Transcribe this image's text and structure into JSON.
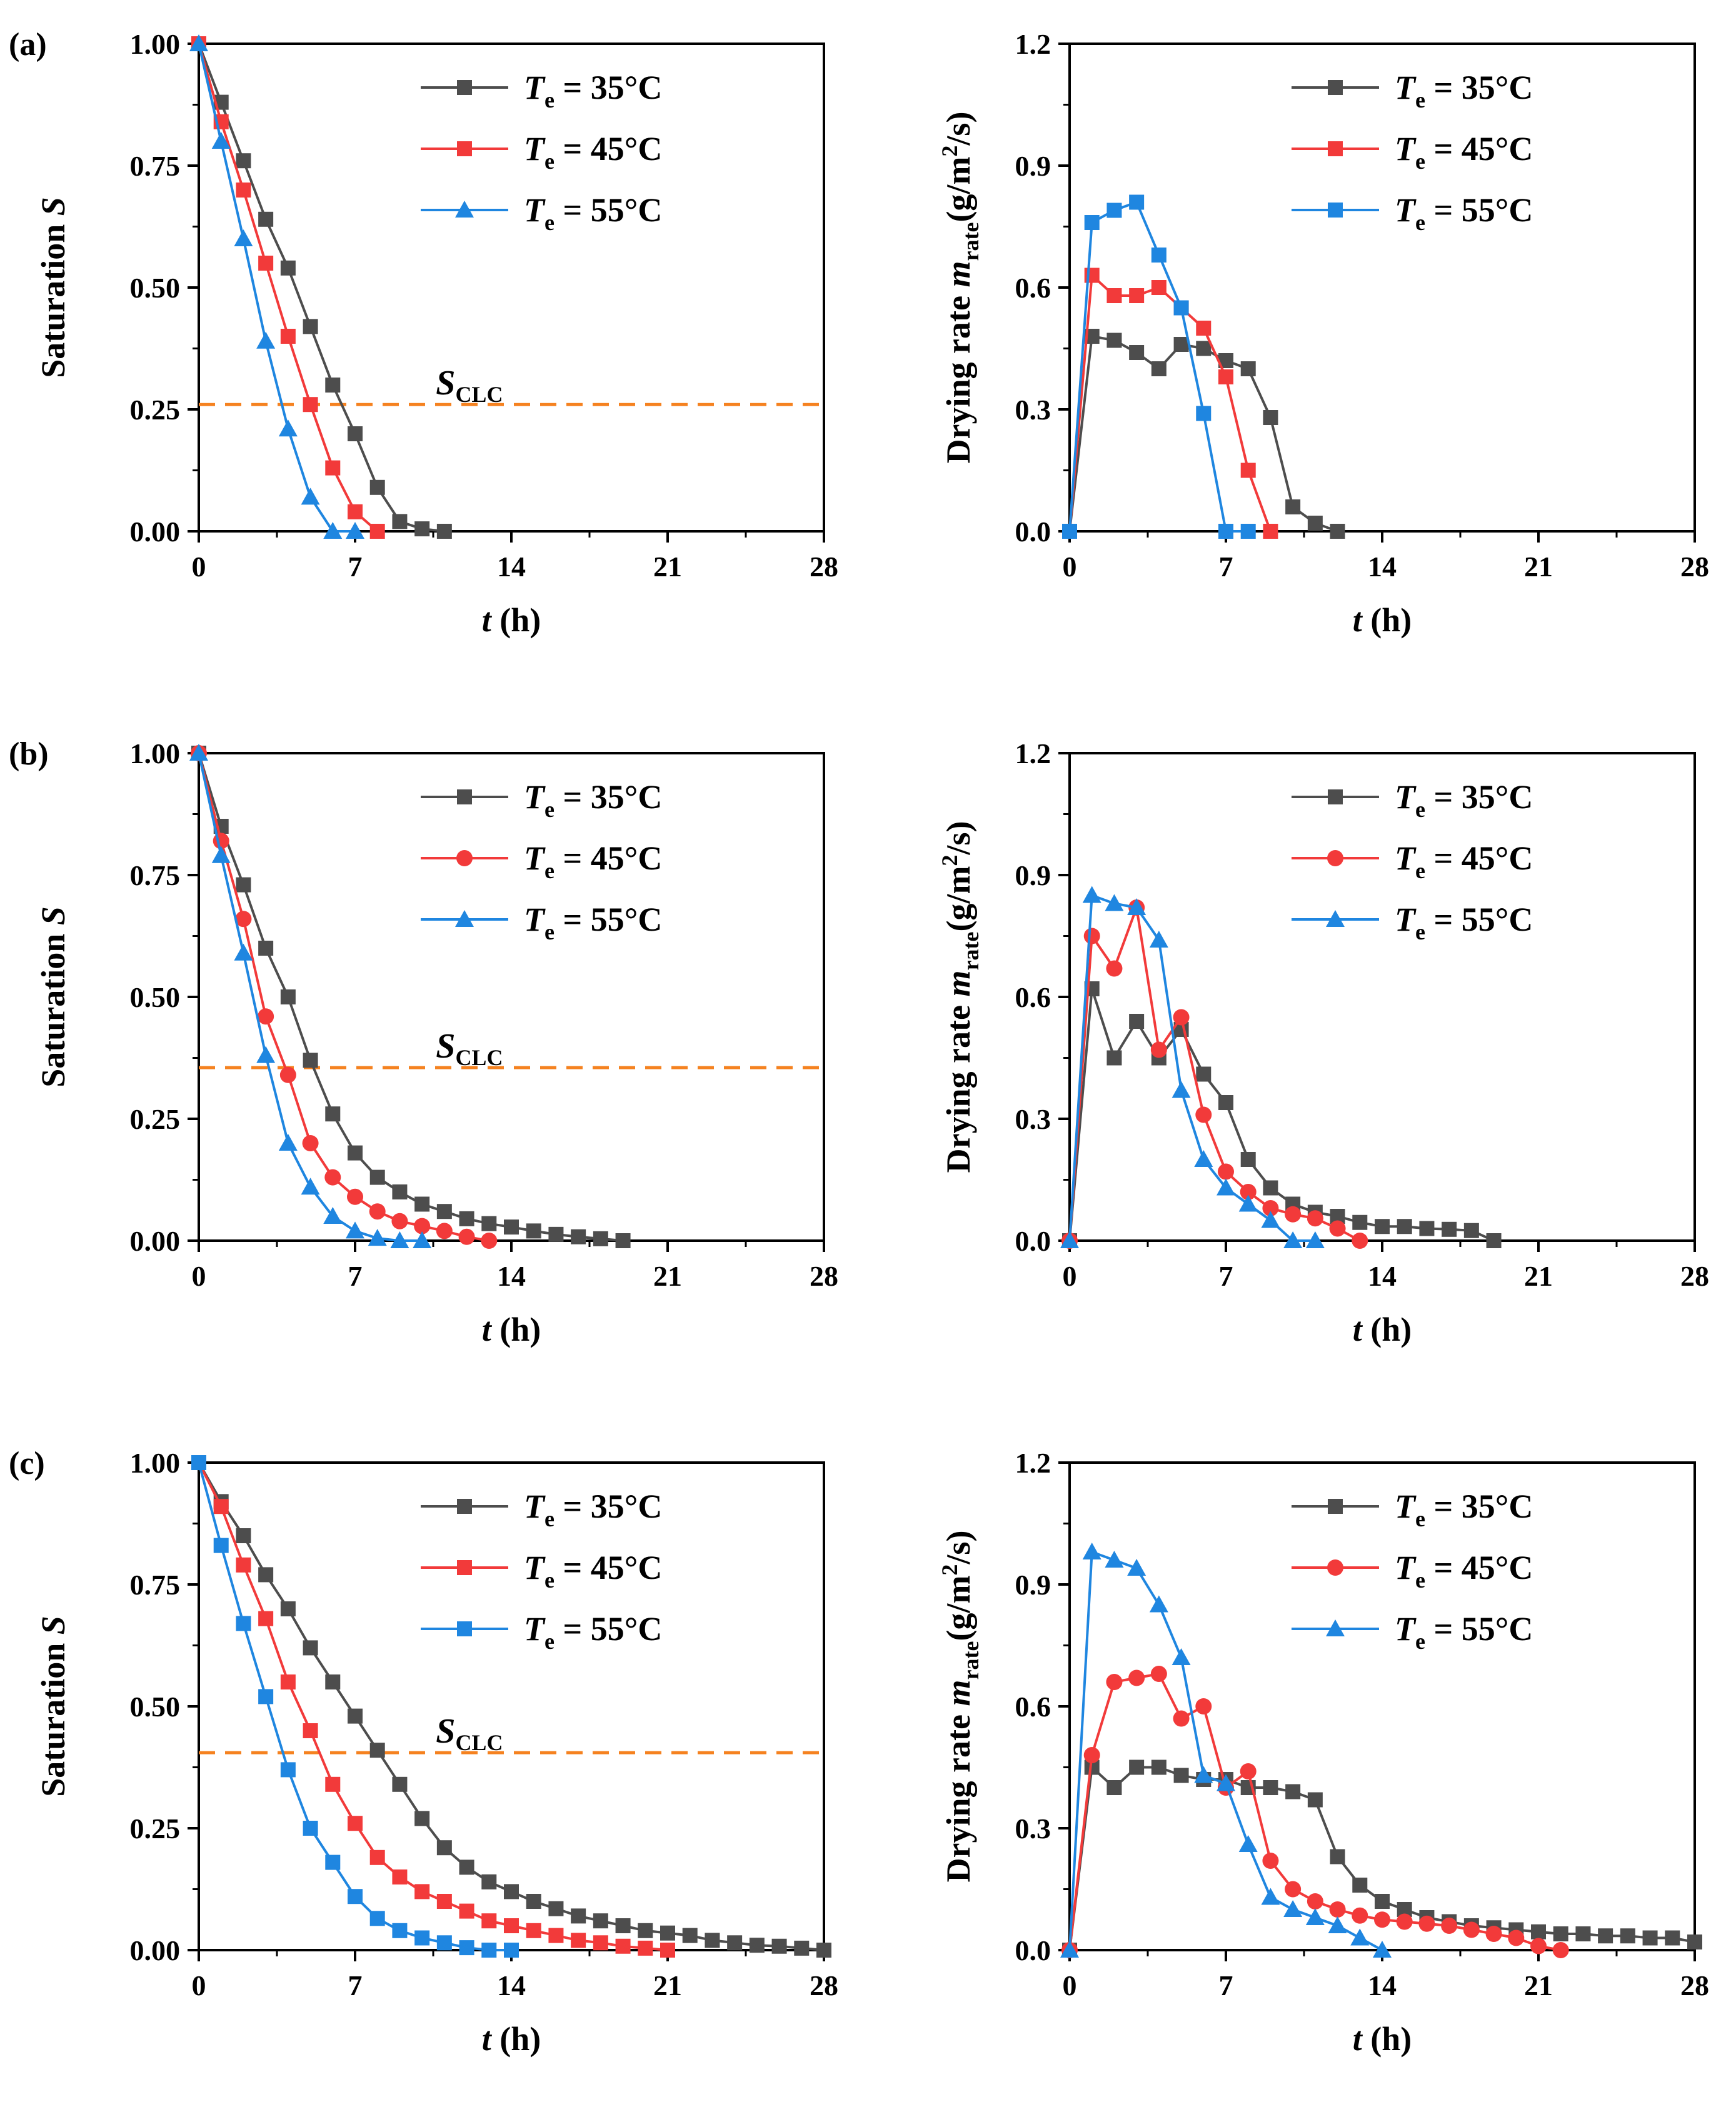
{
  "figure": {
    "units": {
      "saturation": "",
      "rate": ""
    },
    "axis_text": {
      "t_var": "t",
      "t_unit": " (h)",
      "sat_word": "Saturation ",
      "sat_var": "S",
      "rate_pre": "Drying rate ",
      "rate_var": "m",
      "rate_sub": "rate",
      "rate_unit_a": "(g/m",
      "rate_unit_exp": "2",
      "rate_unit_b": "/s)",
      "sclc_var": "S",
      "sclc_sub": "CLC"
    },
    "legend_text": {
      "var": "T",
      "sub": "e",
      "eq": " = "
    }
  },
  "colors": {
    "s35": "#4d4d4d",
    "s45": "#f23a3a",
    "s55": "#1f86e0",
    "sclc": "#f58220"
  },
  "chart_data": [
    {
      "panel": "(a)",
      "type": "line",
      "quantity": "saturation",
      "title": "",
      "xlabel": "t (h)",
      "ylabel": "Saturation S",
      "xlim": [
        0,
        28
      ],
      "ylim": [
        0,
        1.0
      ],
      "xticks": [
        "0",
        "7",
        "14",
        "21",
        "28"
      ],
      "yticks": [
        "0.00",
        "0.25",
        "0.50",
        "0.75",
        "1.00"
      ],
      "sclc": 0.26,
      "sclc_label_t": 9.5,
      "series": [
        {
          "name": "Te = 35°C",
          "label": "35°C",
          "color": "#4d4d4d",
          "marker": "square",
          "x": [
            0,
            1,
            2,
            3,
            4,
            5,
            6,
            7,
            8,
            9,
            10,
            11
          ],
          "y": [
            1.0,
            0.88,
            0.76,
            0.64,
            0.54,
            0.42,
            0.3,
            0.2,
            0.09,
            0.02,
            0.005,
            0.0
          ]
        },
        {
          "name": "Te = 45°C",
          "label": "45°C",
          "color": "#f23a3a",
          "marker": "square",
          "x": [
            0,
            1,
            2,
            3,
            4,
            5,
            6,
            7,
            8
          ],
          "y": [
            1.0,
            0.84,
            0.7,
            0.55,
            0.4,
            0.26,
            0.13,
            0.04,
            0.0
          ]
        },
        {
          "name": "Te = 55°C",
          "label": "55°C",
          "color": "#1f86e0",
          "marker": "triangle",
          "x": [
            0,
            1,
            2,
            3,
            4,
            5,
            6,
            7
          ],
          "y": [
            1.0,
            0.8,
            0.6,
            0.39,
            0.21,
            0.07,
            0.0,
            0.0
          ]
        }
      ]
    },
    {
      "panel": "",
      "type": "line",
      "quantity": "rate",
      "title": "",
      "xlabel": "t (h)",
      "ylabel": "Drying rate m_rate(g/m2/s)",
      "xlim": [
        0,
        28
      ],
      "ylim": [
        0,
        1.2
      ],
      "xticks": [
        "0",
        "7",
        "14",
        "21",
        "28"
      ],
      "yticks": [
        "0.0",
        "0.3",
        "0.6",
        "0.9",
        "1.2"
      ],
      "series": [
        {
          "name": "Te = 35°C",
          "label": "35°C",
          "color": "#4d4d4d",
          "marker": "square",
          "x": [
            0,
            1,
            2,
            3,
            4,
            5,
            6,
            7,
            8,
            9,
            10,
            11,
            12
          ],
          "y": [
            0,
            0.48,
            0.47,
            0.44,
            0.4,
            0.46,
            0.45,
            0.42,
            0.4,
            0.28,
            0.06,
            0.02,
            0.0
          ]
        },
        {
          "name": "Te = 45°C",
          "label": "45°C",
          "color": "#f23a3a",
          "marker": "square",
          "x": [
            0,
            1,
            2,
            3,
            4,
            5,
            6,
            7,
            8,
            9
          ],
          "y": [
            0,
            0.63,
            0.58,
            0.58,
            0.6,
            0.55,
            0.5,
            0.38,
            0.15,
            0.0
          ]
        },
        {
          "name": "Te = 55°C",
          "label": "55°C",
          "color": "#1f86e0",
          "marker": "square",
          "x": [
            0,
            1,
            2,
            3,
            4,
            5,
            6,
            7,
            8
          ],
          "y": [
            0,
            0.76,
            0.79,
            0.81,
            0.68,
            0.55,
            0.29,
            0.0,
            0.0
          ]
        }
      ]
    },
    {
      "panel": "(b)",
      "type": "line",
      "quantity": "saturation",
      "title": "",
      "xlabel": "t (h)",
      "ylabel": "Saturation S",
      "xlim": [
        0,
        28
      ],
      "ylim": [
        0,
        1.0
      ],
      "xticks": [
        "0",
        "7",
        "14",
        "21",
        "28"
      ],
      "yticks": [
        "0.00",
        "0.25",
        "0.50",
        "0.75",
        "1.00"
      ],
      "sclc": 0.355,
      "sclc_label_t": 9.5,
      "series": [
        {
          "name": "Te = 35°C",
          "label": "35°C",
          "color": "#4d4d4d",
          "marker": "square",
          "x": [
            0,
            1,
            2,
            3,
            4,
            5,
            6,
            7,
            8,
            9,
            10,
            11,
            12,
            13,
            14,
            15,
            16,
            17,
            18,
            19
          ],
          "y": [
            1.0,
            0.85,
            0.73,
            0.6,
            0.5,
            0.37,
            0.26,
            0.18,
            0.13,
            0.1,
            0.075,
            0.06,
            0.045,
            0.035,
            0.028,
            0.02,
            0.013,
            0.008,
            0.004,
            0.0
          ]
        },
        {
          "name": "Te = 45°C",
          "label": "45°C",
          "color": "#f23a3a",
          "marker": "circle",
          "x": [
            0,
            1,
            2,
            3,
            4,
            5,
            6,
            7,
            8,
            9,
            10,
            11,
            12,
            13
          ],
          "y": [
            1.0,
            0.82,
            0.66,
            0.46,
            0.34,
            0.2,
            0.13,
            0.09,
            0.06,
            0.04,
            0.03,
            0.02,
            0.008,
            0.0
          ]
        },
        {
          "name": "Te = 55°C",
          "label": "55°C",
          "color": "#1f86e0",
          "marker": "triangle",
          "x": [
            0,
            1,
            2,
            3,
            4,
            5,
            6,
            7,
            8,
            9,
            10
          ],
          "y": [
            1.0,
            0.79,
            0.59,
            0.38,
            0.2,
            0.11,
            0.05,
            0.02,
            0.005,
            0.0,
            0.0
          ]
        }
      ]
    },
    {
      "panel": "",
      "type": "line",
      "quantity": "rate",
      "title": "",
      "xlabel": "t (h)",
      "ylabel": "Drying rate m_rate(g/m2/s)",
      "xlim": [
        0,
        28
      ],
      "ylim": [
        0,
        1.2
      ],
      "xticks": [
        "0",
        "7",
        "14",
        "21",
        "28"
      ],
      "yticks": [
        "0.0",
        "0.3",
        "0.6",
        "0.9",
        "1.2"
      ],
      "series": [
        {
          "name": "Te = 35°C",
          "label": "35°C",
          "color": "#4d4d4d",
          "marker": "square",
          "x": [
            0,
            1,
            2,
            3,
            4,
            5,
            6,
            7,
            8,
            9,
            10,
            11,
            12,
            13,
            14,
            15,
            16,
            17,
            18,
            19
          ],
          "y": [
            0,
            0.62,
            0.45,
            0.54,
            0.45,
            0.52,
            0.41,
            0.34,
            0.2,
            0.13,
            0.09,
            0.07,
            0.06,
            0.045,
            0.035,
            0.035,
            0.03,
            0.028,
            0.025,
            0.0
          ]
        },
        {
          "name": "Te = 45°C",
          "label": "45°C",
          "color": "#f23a3a",
          "marker": "circle",
          "x": [
            0,
            1,
            2,
            3,
            4,
            5,
            6,
            7,
            8,
            9,
            10,
            11,
            12,
            13
          ],
          "y": [
            0,
            0.75,
            0.67,
            0.82,
            0.47,
            0.55,
            0.31,
            0.17,
            0.12,
            0.08,
            0.065,
            0.055,
            0.03,
            0.0
          ]
        },
        {
          "name": "Te = 55°C",
          "label": "55°C",
          "color": "#1f86e0",
          "marker": "triangle",
          "x": [
            0,
            1,
            2,
            3,
            4,
            5,
            6,
            7,
            8,
            9,
            10,
            11
          ],
          "y": [
            0,
            0.85,
            0.83,
            0.82,
            0.74,
            0.37,
            0.2,
            0.13,
            0.09,
            0.05,
            0.0,
            0.0
          ]
        }
      ]
    },
    {
      "panel": "(c)",
      "type": "line",
      "quantity": "saturation",
      "title": "",
      "xlabel": "t (h)",
      "ylabel": "Saturation S",
      "xlim": [
        0,
        28
      ],
      "ylim": [
        0,
        1.0
      ],
      "xticks": [
        "0",
        "7",
        "14",
        "21",
        "28"
      ],
      "yticks": [
        "0.00",
        "0.25",
        "0.50",
        "0.75",
        "1.00"
      ],
      "sclc": 0.405,
      "sclc_label_t": 9.5,
      "series": [
        {
          "name": "Te = 35°C",
          "label": "35°C",
          "color": "#4d4d4d",
          "marker": "square",
          "x": [
            0,
            1,
            2,
            3,
            4,
            5,
            6,
            7,
            8,
            9,
            10,
            11,
            12,
            13,
            14,
            15,
            16,
            17,
            18,
            19,
            20,
            21,
            22,
            23,
            24,
            25,
            26,
            27,
            28
          ],
          "y": [
            1.0,
            0.92,
            0.85,
            0.77,
            0.7,
            0.62,
            0.55,
            0.48,
            0.41,
            0.34,
            0.27,
            0.21,
            0.17,
            0.14,
            0.12,
            0.1,
            0.085,
            0.07,
            0.06,
            0.05,
            0.04,
            0.035,
            0.03,
            0.02,
            0.015,
            0.01,
            0.008,
            0.004,
            0.0
          ]
        },
        {
          "name": "Te = 45°C",
          "label": "45°C",
          "color": "#f23a3a",
          "marker": "square",
          "x": [
            0,
            1,
            2,
            3,
            4,
            5,
            6,
            7,
            8,
            9,
            10,
            11,
            12,
            13,
            14,
            15,
            16,
            17,
            18,
            19,
            20,
            21
          ],
          "y": [
            1.0,
            0.91,
            0.79,
            0.68,
            0.55,
            0.45,
            0.34,
            0.26,
            0.19,
            0.15,
            0.12,
            0.1,
            0.08,
            0.06,
            0.05,
            0.04,
            0.03,
            0.02,
            0.015,
            0.008,
            0.004,
            0.0
          ]
        },
        {
          "name": "Te = 55°C",
          "label": "55°C",
          "color": "#1f86e0",
          "marker": "square",
          "x": [
            0,
            1,
            2,
            3,
            4,
            5,
            6,
            7,
            8,
            9,
            10,
            11,
            12,
            13,
            14
          ],
          "y": [
            1.0,
            0.83,
            0.67,
            0.52,
            0.37,
            0.25,
            0.18,
            0.11,
            0.065,
            0.04,
            0.025,
            0.015,
            0.005,
            0.0,
            0.0
          ]
        }
      ]
    },
    {
      "panel": "",
      "type": "line",
      "quantity": "rate",
      "title": "",
      "xlabel": "t (h)",
      "ylabel": "Drying rate m_rate(g/m2/s)",
      "xlim": [
        0,
        28
      ],
      "ylim": [
        0,
        1.2
      ],
      "xticks": [
        "0",
        "7",
        "14",
        "21",
        "28"
      ],
      "yticks": [
        "0.0",
        "0.3",
        "0.6",
        "0.9",
        "1.2"
      ],
      "series": [
        {
          "name": "Te = 35°C",
          "label": "35°C",
          "color": "#4d4d4d",
          "marker": "square",
          "x": [
            0,
            1,
            2,
            3,
            4,
            5,
            6,
            7,
            8,
            9,
            10,
            11,
            12,
            13,
            14,
            15,
            16,
            17,
            18,
            19,
            20,
            21,
            22,
            23,
            24,
            25,
            26,
            27,
            28
          ],
          "y": [
            0,
            0.45,
            0.4,
            0.45,
            0.45,
            0.43,
            0.42,
            0.42,
            0.4,
            0.4,
            0.39,
            0.37,
            0.23,
            0.16,
            0.12,
            0.1,
            0.08,
            0.07,
            0.06,
            0.055,
            0.05,
            0.045,
            0.04,
            0.04,
            0.035,
            0.035,
            0.03,
            0.03,
            0.02
          ]
        },
        {
          "name": "Te = 45°C",
          "label": "45°C",
          "color": "#f23a3a",
          "marker": "circle",
          "x": [
            0,
            1,
            2,
            3,
            4,
            5,
            6,
            7,
            8,
            9,
            10,
            11,
            12,
            13,
            14,
            15,
            16,
            17,
            18,
            19,
            20,
            21,
            22
          ],
          "y": [
            0,
            0.48,
            0.66,
            0.67,
            0.68,
            0.57,
            0.6,
            0.4,
            0.44,
            0.22,
            0.15,
            0.12,
            0.1,
            0.085,
            0.075,
            0.07,
            0.065,
            0.06,
            0.05,
            0.04,
            0.03,
            0.01,
            0.0
          ]
        },
        {
          "name": "Te = 55°C",
          "label": "55°C",
          "color": "#1f86e0",
          "marker": "triangle",
          "x": [
            0,
            1,
            2,
            3,
            4,
            5,
            6,
            7,
            8,
            9,
            10,
            11,
            12,
            13,
            14
          ],
          "y": [
            0,
            0.98,
            0.96,
            0.94,
            0.85,
            0.72,
            0.43,
            0.41,
            0.26,
            0.13,
            0.1,
            0.08,
            0.06,
            0.03,
            0.0
          ]
        }
      ]
    }
  ]
}
